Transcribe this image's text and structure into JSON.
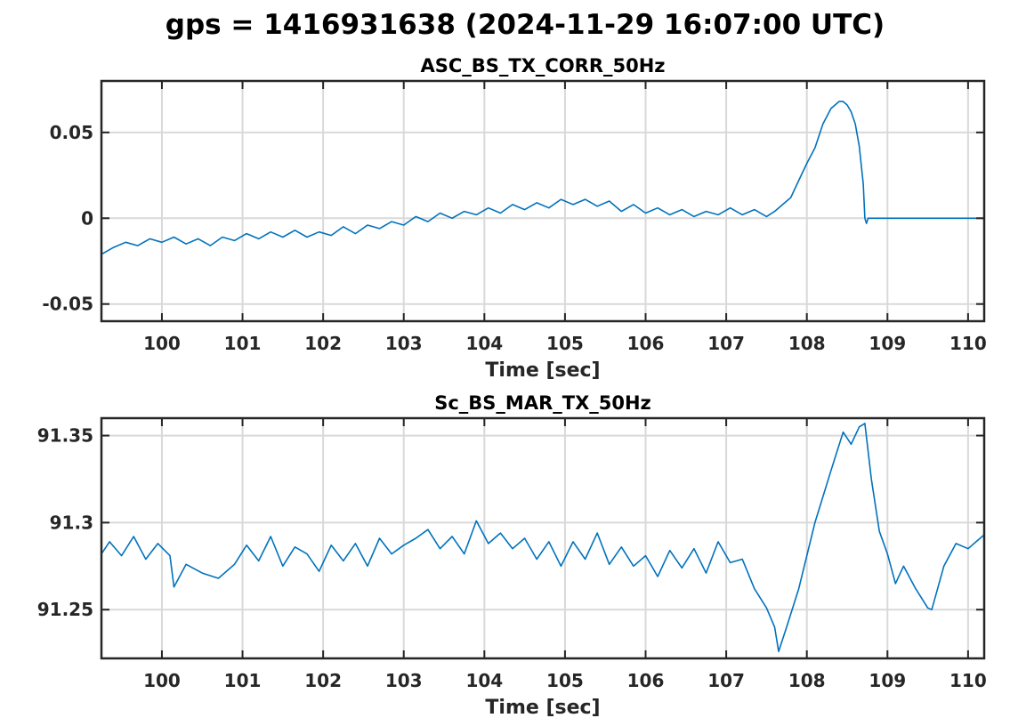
{
  "figure_title": "gps = 1416931638 (2024-11-29 16:07:00 UTC)",
  "line_color": "#0072BD",
  "chart_data": [
    {
      "type": "line",
      "title": "ASC_BS_TX_CORR_50Hz",
      "xlabel": "Time [sec]",
      "ylabel": "",
      "xlim": [
        99.25,
        110.2
      ],
      "ylim": [
        -0.06,
        0.08
      ],
      "xticks": [
        100,
        101,
        102,
        103,
        104,
        105,
        106,
        107,
        108,
        109,
        110
      ],
      "yticks": [
        -0.05,
        0,
        0.05
      ],
      "ytick_labels": [
        "-0.05",
        "0",
        "0.05"
      ],
      "grid": true,
      "series": [
        {
          "x": [
            99.25,
            99.4,
            99.55,
            99.7,
            99.85,
            100.0,
            100.15,
            100.3,
            100.45,
            100.6,
            100.75,
            100.9,
            101.05,
            101.2,
            101.35,
            101.5,
            101.65,
            101.8,
            101.95,
            102.1,
            102.25,
            102.4,
            102.55,
            102.7,
            102.85,
            103.0,
            103.15,
            103.3,
            103.45,
            103.6,
            103.75,
            103.9,
            104.05,
            104.2,
            104.35,
            104.5,
            104.65,
            104.8,
            104.95,
            105.1,
            105.25,
            105.4,
            105.55,
            105.7,
            105.85,
            106.0,
            106.15,
            106.3,
            106.45,
            106.6,
            106.75,
            106.9,
            107.05,
            107.2,
            107.35,
            107.5,
            107.6,
            107.7,
            107.8,
            107.9,
            108.0,
            108.1,
            108.2,
            108.3,
            108.4,
            108.45,
            108.5,
            108.55,
            108.6,
            108.65,
            108.7,
            108.72,
            108.74,
            108.76,
            108.8,
            108.9,
            109.2,
            109.6,
            110.0,
            110.2
          ],
          "y": [
            -0.021,
            -0.017,
            -0.014,
            -0.016,
            -0.012,
            -0.014,
            -0.011,
            -0.015,
            -0.012,
            -0.016,
            -0.011,
            -0.013,
            -0.009,
            -0.012,
            -0.008,
            -0.011,
            -0.007,
            -0.011,
            -0.008,
            -0.01,
            -0.005,
            -0.009,
            -0.004,
            -0.006,
            -0.002,
            -0.004,
            0.001,
            -0.002,
            0.003,
            0.0,
            0.004,
            0.002,
            0.006,
            0.003,
            0.008,
            0.005,
            0.009,
            0.006,
            0.011,
            0.008,
            0.011,
            0.007,
            0.01,
            0.004,
            0.008,
            0.003,
            0.006,
            0.002,
            0.005,
            0.001,
            0.004,
            0.002,
            0.006,
            0.002,
            0.005,
            0.001,
            0.004,
            0.008,
            0.012,
            0.022,
            0.032,
            0.041,
            0.055,
            0.064,
            0.068,
            0.068,
            0.066,
            0.062,
            0.055,
            0.042,
            0.02,
            0.0,
            -0.003,
            0.0,
            0.0,
            0.0,
            0.0,
            0.0,
            0.0,
            0.0
          ]
        }
      ]
    },
    {
      "type": "line",
      "title": "Sc_BS_MAR_TX_50Hz",
      "xlabel": "Time [sec]",
      "ylabel": "",
      "xlim": [
        99.25,
        110.2
      ],
      "ylim": [
        91.222,
        91.36
      ],
      "xticks": [
        100,
        101,
        102,
        103,
        104,
        105,
        106,
        107,
        108,
        109,
        110
      ],
      "yticks": [
        91.25,
        91.3,
        91.35
      ],
      "ytick_labels": [
        "91.25",
        "91.3",
        "91.35"
      ],
      "grid": true,
      "series": [
        {
          "x": [
            99.25,
            99.35,
            99.5,
            99.65,
            99.8,
            99.95,
            100.1,
            100.15,
            100.3,
            100.5,
            100.7,
            100.9,
            101.05,
            101.2,
            101.35,
            101.5,
            101.65,
            101.8,
            101.95,
            102.1,
            102.25,
            102.4,
            102.55,
            102.7,
            102.85,
            103.0,
            103.15,
            103.3,
            103.45,
            103.6,
            103.75,
            103.9,
            104.05,
            104.2,
            104.35,
            104.5,
            104.65,
            104.8,
            104.95,
            105.1,
            105.25,
            105.4,
            105.55,
            105.7,
            105.85,
            106.0,
            106.15,
            106.3,
            106.45,
            106.6,
            106.75,
            106.9,
            107.05,
            107.2,
            107.35,
            107.5,
            107.6,
            107.65,
            107.75,
            107.9,
            108.1,
            108.3,
            108.45,
            108.55,
            108.65,
            108.72,
            108.8,
            108.9,
            109.0,
            109.1,
            109.2,
            109.35,
            109.5,
            109.55,
            109.7,
            109.85,
            110.0,
            110.1,
            110.2
          ],
          "y": [
            91.282,
            91.289,
            91.281,
            91.292,
            91.279,
            91.288,
            91.281,
            91.263,
            91.276,
            91.271,
            91.268,
            91.276,
            91.287,
            91.278,
            91.292,
            91.275,
            91.286,
            91.282,
            91.272,
            91.287,
            91.278,
            91.288,
            91.275,
            91.291,
            91.282,
            91.287,
            91.291,
            91.296,
            91.285,
            91.292,
            91.282,
            91.301,
            91.288,
            91.294,
            91.285,
            91.291,
            91.279,
            91.289,
            91.275,
            91.289,
            91.279,
            91.294,
            91.276,
            91.286,
            91.275,
            91.281,
            91.269,
            91.284,
            91.274,
            91.285,
            91.271,
            91.289,
            91.277,
            91.279,
            91.262,
            91.251,
            91.24,
            91.226,
            91.24,
            91.262,
            91.3,
            91.33,
            91.352,
            91.345,
            91.355,
            91.357,
            91.325,
            91.295,
            91.282,
            91.265,
            91.275,
            91.262,
            91.251,
            91.25,
            91.275,
            91.288,
            91.285,
            91.289,
            91.293
          ]
        }
      ]
    }
  ]
}
